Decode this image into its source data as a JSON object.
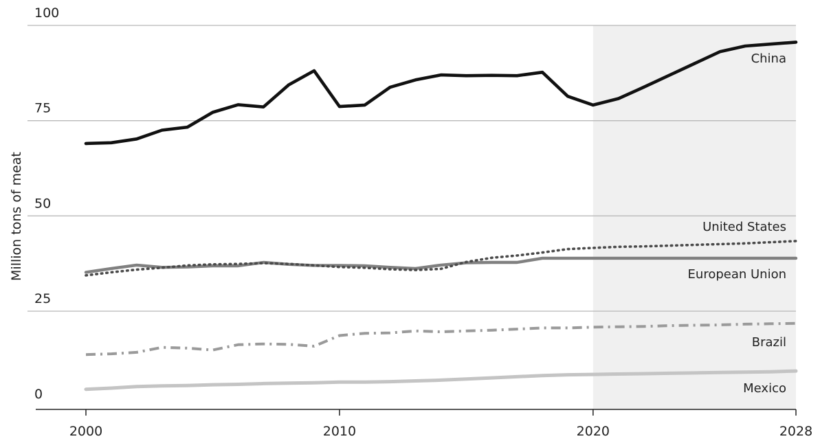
{
  "chart_data": {
    "type": "line",
    "title": "",
    "xlabel": "",
    "ylabel": "Million tons of meat",
    "xlim": [
      1998,
      2028
    ],
    "ylim": [
      -3,
      100
    ],
    "x_ticks": [
      "2000",
      "2010",
      "2020",
      "2028"
    ],
    "y_ticks": [
      "0",
      "25",
      "50",
      "75",
      "100"
    ],
    "grid": "horizontal",
    "projection_shaded_from": 2020,
    "colors": {
      "china": "#111111",
      "united_states": "#4a4a4a",
      "european_union": "#808080",
      "brazil": "#9a9a9a",
      "mexico": "#c4c4c4",
      "projection_band": "#f0f0f0",
      "grid": "#b8b8b8"
    },
    "series": [
      {
        "name": "China",
        "style": "solid-thick",
        "x": [
          2000,
          2001,
          2002,
          2003,
          2004,
          2005,
          2006,
          2007,
          2008,
          2009,
          2010,
          2011,
          2012,
          2013,
          2014,
          2015,
          2016,
          2017,
          2018,
          2019,
          2020,
          2021,
          2022,
          2023,
          2024,
          2025,
          2026,
          2027,
          2028
        ],
        "values": [
          69.0,
          69.2,
          70.2,
          72.5,
          73.3,
          77.2,
          79.2,
          78.6,
          84.4,
          88.1,
          78.7,
          79.1,
          83.8,
          85.7,
          87.0,
          86.8,
          86.9,
          86.8,
          87.7,
          81.4,
          79.1,
          80.8,
          83.8,
          86.9,
          90.0,
          93.1,
          94.6,
          95.1,
          95.6
        ]
      },
      {
        "name": "United States",
        "style": "dotted",
        "x": [
          2000,
          2001,
          2002,
          2003,
          2004,
          2005,
          2006,
          2007,
          2008,
          2009,
          2010,
          2011,
          2012,
          2013,
          2014,
          2015,
          2016,
          2017,
          2018,
          2019,
          2020,
          2021,
          2022,
          2023,
          2024,
          2025,
          2026,
          2027,
          2028
        ],
        "values": [
          34.4,
          35.2,
          35.9,
          36.4,
          37.0,
          37.3,
          37.4,
          37.6,
          37.4,
          37.0,
          36.6,
          36.4,
          36.0,
          35.8,
          36.1,
          37.9,
          39.0,
          39.6,
          40.4,
          41.3,
          41.6,
          41.9,
          42.0,
          42.2,
          42.4,
          42.6,
          42.8,
          43.1,
          43.4
        ]
      },
      {
        "name": "European Union",
        "style": "solid",
        "x": [
          2000,
          2001,
          2002,
          2003,
          2004,
          2005,
          2006,
          2007,
          2008,
          2009,
          2010,
          2011,
          2012,
          2013,
          2014,
          2015,
          2016,
          2017,
          2018,
          2019,
          2020,
          2021,
          2022,
          2023,
          2024,
          2025,
          2026,
          2027,
          2028
        ],
        "values": [
          35.2,
          36.2,
          37.1,
          36.5,
          36.6,
          36.9,
          36.9,
          37.8,
          37.3,
          37.0,
          37.0,
          36.9,
          36.5,
          36.2,
          37.1,
          37.7,
          37.8,
          37.8,
          38.9,
          38.9,
          38.9,
          38.9,
          38.9,
          38.9,
          38.9,
          38.9,
          38.9,
          38.9,
          38.9
        ]
      },
      {
        "name": "Brazil",
        "style": "dash-dot",
        "x": [
          2000,
          2001,
          2002,
          2003,
          2004,
          2005,
          2006,
          2007,
          2008,
          2009,
          2010,
          2011,
          2012,
          2013,
          2014,
          2015,
          2016,
          2017,
          2018,
          2019,
          2020,
          2021,
          2022,
          2023,
          2024,
          2025,
          2026,
          2027,
          2028
        ],
        "values": [
          13.6,
          13.8,
          14.2,
          15.5,
          15.3,
          14.8,
          16.2,
          16.4,
          16.3,
          15.8,
          18.6,
          19.2,
          19.3,
          19.8,
          19.6,
          19.8,
          20.0,
          20.3,
          20.6,
          20.6,
          20.8,
          20.9,
          21.0,
          21.2,
          21.3,
          21.4,
          21.6,
          21.7,
          21.8
        ]
      },
      {
        "name": "Mexico",
        "style": "solid-light",
        "x": [
          2000,
          2001,
          2002,
          2003,
          2004,
          2005,
          2006,
          2007,
          2008,
          2009,
          2010,
          2011,
          2012,
          2013,
          2014,
          2015,
          2016,
          2017,
          2018,
          2019,
          2020,
          2021,
          2022,
          2023,
          2024,
          2025,
          2026,
          2027,
          2028
        ],
        "values": [
          4.5,
          4.8,
          5.2,
          5.4,
          5.5,
          5.7,
          5.8,
          6.0,
          6.1,
          6.2,
          6.4,
          6.4,
          6.5,
          6.7,
          6.9,
          7.2,
          7.5,
          7.8,
          8.1,
          8.3,
          8.4,
          8.5,
          8.6,
          8.7,
          8.8,
          8.9,
          9.0,
          9.1,
          9.3
        ]
      }
    ]
  }
}
